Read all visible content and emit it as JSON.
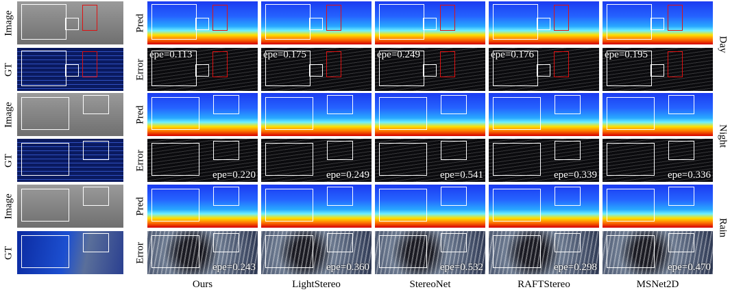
{
  "left_labels": [
    "Image",
    "GT",
    "Image",
    "GT",
    "Image",
    "GT"
  ],
  "row_labels": [
    "Pred",
    "Error",
    "Pred",
    "Error",
    "Pred",
    "Error"
  ],
  "conditions": [
    "Day",
    "Night",
    "Rain"
  ],
  "columns": [
    "Ours",
    "LightStereo",
    "StereoNet",
    "RAFTStereo",
    "MSNet2D"
  ],
  "epe": [
    [
      "epe=0.113",
      "epe=0.175",
      "epe=0.249",
      "epe=0.176",
      "epe=0.195"
    ],
    [
      "epe=0.220",
      "epe=0.249",
      "epe=0.541",
      "epe=0.339",
      "epe=0.336"
    ],
    [
      "epe=0.243",
      "epe=0.360",
      "epe=0.532",
      "epe=0.298",
      "epe=0.470"
    ]
  ]
}
